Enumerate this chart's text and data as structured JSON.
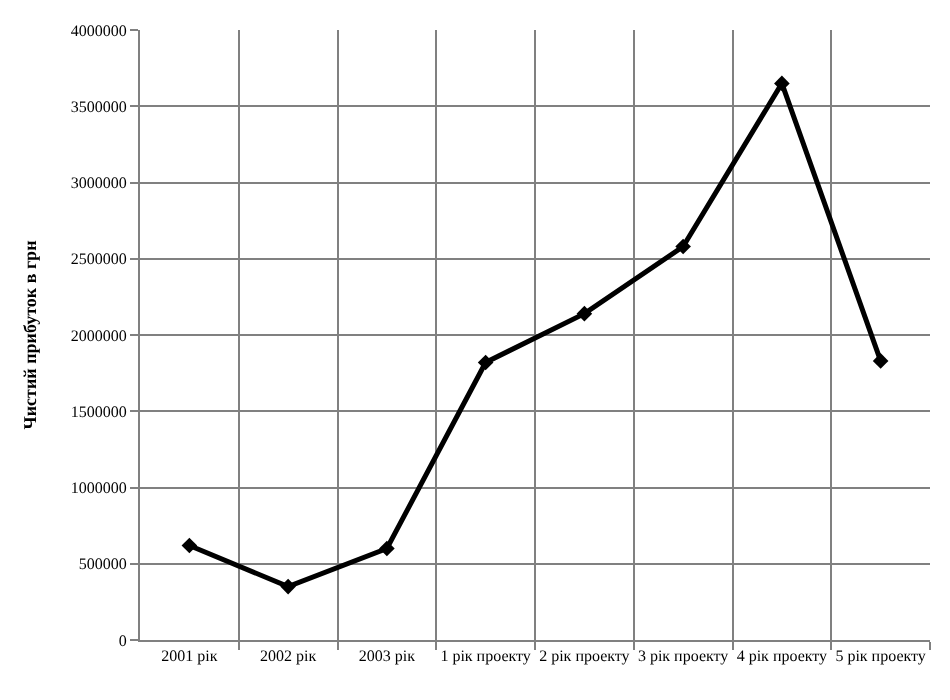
{
  "chart_data": {
    "type": "line",
    "ylabel": "Чистий прибуток в грн",
    "categories": [
      "2001 рік",
      "2002 рік",
      "2003 рік",
      "1 рік проекту",
      "2 рік проекту",
      "3 рік проекту",
      "4 рік проекту",
      "5 рік проекту"
    ],
    "series": [
      {
        "color": "#000000",
        "values": [
          620000,
          350000,
          600000,
          1820000,
          2140000,
          2580000,
          3650000,
          1830000
        ]
      }
    ],
    "ylim": [
      0,
      4000000
    ],
    "yticks": [
      0,
      500000,
      1000000,
      1500000,
      2000000,
      2500000,
      3000000,
      3500000,
      4000000
    ],
    "grid": true,
    "marker": "diamond",
    "line_style": "solid"
  }
}
